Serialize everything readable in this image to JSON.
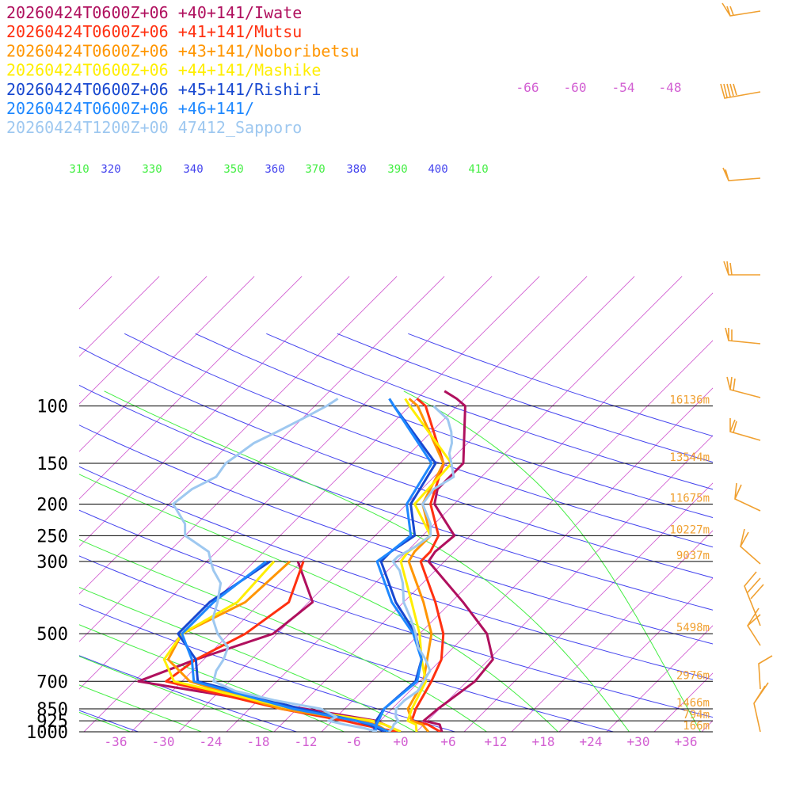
{
  "chart_data": {
    "type": "line",
    "title": "",
    "xlabel": "",
    "ylabel": "",
    "pressure_levels": [
      100,
      150,
      200,
      250,
      300,
      500,
      700,
      850,
      925,
      1000
    ],
    "pressure_labels": [
      "100",
      "150",
      "200",
      "250",
      "300",
      "500",
      "700",
      "850",
      "925",
      "1000"
    ],
    "height_labels": [
      "16136m",
      "13544m",
      "11675m",
      "10227m",
      "9037m",
      "5498m",
      "2976m",
      "1466m",
      "794m",
      "166m"
    ],
    "temp_ticks": [
      "-36",
      "-30",
      "-24",
      "-18",
      "-12",
      "-6",
      "+0",
      "+6",
      "+12",
      "+18",
      "+24",
      "+30",
      "+36"
    ],
    "theta_labels": [
      "310",
      "320",
      "330",
      "340",
      "350",
      "360",
      "370",
      "380",
      "390",
      "400",
      "410"
    ],
    "upper_temp_labels": [
      "-66",
      "-60",
      "-54",
      "-48"
    ],
    "grid": true,
    "legend_position": "top-left",
    "colors": {
      "isotherm": "#d25fd2",
      "dry_adiabat": "#4444ee",
      "moist_adiabat": "#44ee44",
      "isobar": "#000000",
      "height_label": "#f0a030",
      "wind_barb": "#f0a030"
    },
    "series": [
      {
        "name": "20260424T0600Z+06 +40+141/Iwate",
        "color": "#b0105e",
        "temperature": [
          [
            1000,
            5.2
          ],
          [
            950,
            4.0
          ],
          [
            925,
            1.5
          ],
          [
            850,
            1.8
          ],
          [
            700,
            3.0
          ],
          [
            600,
            2.5
          ],
          [
            500,
            -1.5
          ],
          [
            400,
            -8.5
          ],
          [
            300,
            -18.0
          ],
          [
            280,
            -18.4
          ],
          [
            250,
            -18.0
          ],
          [
            200,
            -24.5
          ],
          [
            180,
            -26.0
          ],
          [
            150,
            -26.0
          ],
          [
            100,
            -33.0
          ],
          [
            95,
            -35.0
          ],
          [
            90,
            -37.5
          ]
        ],
        "dewpoint": [
          [
            1000,
            0.0
          ],
          [
            950,
            -3.0
          ],
          [
            925,
            -4.5
          ],
          [
            850,
            -15.0
          ],
          [
            700,
            -39.5
          ],
          [
            600,
            -35.0
          ],
          [
            500,
            -28.5
          ],
          [
            400,
            -27.5
          ],
          [
            300,
            -34.5
          ]
        ]
      },
      {
        "name": "20260424T0600Z+06 +41+141/Mutsu",
        "color": "#ff3010",
        "temperature": [
          [
            1000,
            5.0
          ],
          [
            950,
            2.5
          ],
          [
            925,
            0.0
          ],
          [
            850,
            -1.0
          ],
          [
            700,
            -2.5
          ],
          [
            600,
            -4.0
          ],
          [
            500,
            -7.0
          ],
          [
            400,
            -12.0
          ],
          [
            300,
            -19.0
          ],
          [
            280,
            -19.0
          ],
          [
            250,
            -20.0
          ],
          [
            200,
            -25.0
          ],
          [
            150,
            -28.5
          ],
          [
            100,
            -38.0
          ],
          [
            95,
            -40.0
          ]
        ],
        "dewpoint": [
          [
            1000,
            -0.5
          ],
          [
            950,
            -6.0
          ],
          [
            925,
            -8.5
          ],
          [
            850,
            -18.0
          ],
          [
            700,
            -36.0
          ],
          [
            600,
            -35.0
          ],
          [
            500,
            -32.0
          ],
          [
            400,
            -30.5
          ],
          [
            300,
            -33.8
          ]
        ]
      },
      {
        "name": "20260424T0600Z+06 +43+141/Noboribetsu",
        "color": "#ff9500",
        "temperature": [
          [
            1000,
            3.5
          ],
          [
            950,
            1.8
          ],
          [
            925,
            0.0
          ],
          [
            850,
            -2.0
          ],
          [
            700,
            -3.5
          ],
          [
            600,
            -5.8
          ],
          [
            500,
            -8.5
          ],
          [
            400,
            -13.5
          ],
          [
            300,
            -20.5
          ],
          [
            280,
            -21.0
          ],
          [
            250,
            -21.0
          ],
          [
            200,
            -26.0
          ],
          [
            150,
            -28.5
          ],
          [
            100,
            -39.0
          ],
          [
            95,
            -41.0
          ]
        ],
        "dewpoint": [
          [
            1000,
            -1.5
          ],
          [
            950,
            -4.0
          ],
          [
            925,
            -6.5
          ],
          [
            850,
            -18.0
          ],
          [
            700,
            -33.0
          ],
          [
            600,
            -38.5
          ],
          [
            500,
            -40.0
          ],
          [
            400,
            -36.0
          ],
          [
            300,
            -35.5
          ]
        ]
      },
      {
        "name": "20260424T0600Z+06 +44+141/Mashike",
        "color": "#ffee00",
        "temperature": [
          [
            1000,
            2.0
          ],
          [
            950,
            1.0
          ],
          [
            925,
            -0.5
          ],
          [
            850,
            -1.5
          ],
          [
            700,
            -3.2
          ],
          [
            600,
            -6.5
          ],
          [
            500,
            -10.0
          ],
          [
            400,
            -15.0
          ],
          [
            300,
            -21.5
          ],
          [
            280,
            -21.8
          ],
          [
            250,
            -21.0
          ],
          [
            200,
            -27.0
          ],
          [
            150,
            -27.5
          ],
          [
            100,
            -40.0
          ],
          [
            95,
            -41.5
          ]
        ],
        "dewpoint": [
          [
            1000,
            0.0
          ],
          [
            950,
            -3.0
          ],
          [
            925,
            -5.0
          ],
          [
            850,
            -16.5
          ],
          [
            700,
            -35.0
          ],
          [
            600,
            -39.0
          ],
          [
            500,
            -40.0
          ],
          [
            400,
            -37.0
          ],
          [
            300,
            -37.5
          ]
        ]
      },
      {
        "name": "20260424T0600Z+06 +45+141/Rishiri",
        "color": "#1848d0",
        "temperature": [
          [
            1000,
            -3.5
          ],
          [
            950,
            -4.0
          ],
          [
            925,
            -4.5
          ],
          [
            850,
            -5.0
          ],
          [
            700,
            -4.5
          ],
          [
            600,
            -6.5
          ],
          [
            500,
            -10.5
          ],
          [
            400,
            -17.0
          ],
          [
            300,
            -24.0
          ],
          [
            280,
            -24.0
          ],
          [
            250,
            -23.0
          ],
          [
            200,
            -27.5
          ],
          [
            150,
            -29.5
          ],
          [
            100,
            -42.0
          ],
          [
            95,
            -43.5
          ]
        ],
        "dewpoint": [
          [
            1000,
            -2.0
          ],
          [
            950,
            -5.0
          ],
          [
            925,
            -7.0
          ],
          [
            850,
            -15.5
          ],
          [
            700,
            -32.0
          ],
          [
            600,
            -35.0
          ],
          [
            500,
            -40.5
          ],
          [
            400,
            -40.5
          ],
          [
            300,
            -38.0
          ]
        ]
      },
      {
        "name": "20260424T0600Z+06 +46+141/",
        "color": "#1e88ff",
        "temperature": [
          [
            1000,
            -3.2
          ],
          [
            950,
            -4.0
          ],
          [
            925,
            -4.2
          ],
          [
            850,
            -5.0
          ],
          [
            700,
            -4.3
          ],
          [
            600,
            -6.5
          ],
          [
            500,
            -10.8
          ],
          [
            400,
            -17.5
          ],
          [
            300,
            -24.5
          ],
          [
            280,
            -24.0
          ],
          [
            250,
            -23.5
          ],
          [
            200,
            -28.0
          ],
          [
            150,
            -30.0
          ],
          [
            100,
            -42.0
          ],
          [
            95,
            -43.5
          ]
        ],
        "dewpoint": [
          [
            1000,
            -1.5
          ],
          [
            950,
            -4.5
          ],
          [
            925,
            -7.0
          ],
          [
            850,
            -16.5
          ],
          [
            700,
            -32.5
          ],
          [
            600,
            -35.5
          ],
          [
            500,
            -40.0
          ],
          [
            400,
            -40.0
          ],
          [
            300,
            -38.5
          ]
        ]
      },
      {
        "name": "20260424T1200Z+00 47412_Sapporo",
        "color": "#9ec8f0",
        "temperature": [
          [
            1000,
            -1.5
          ],
          [
            975,
            -1.5
          ],
          [
            950,
            -1.8
          ],
          [
            925,
            -1.7
          ],
          [
            900,
            -2.5
          ],
          [
            850,
            -3.5
          ],
          [
            800,
            -3.5
          ],
          [
            750,
            -3.0
          ],
          [
            700,
            -3.5
          ],
          [
            650,
            -4.0
          ],
          [
            600,
            -6.0
          ],
          [
            550,
            -8.5
          ],
          [
            500,
            -10.5
          ],
          [
            450,
            -13.0
          ],
          [
            400,
            -16.0
          ],
          [
            350,
            -18.5
          ],
          [
            320,
            -20.5
          ],
          [
            300,
            -22.5
          ],
          [
            290,
            -22.5
          ],
          [
            270,
            -21.5
          ],
          [
            250,
            -21.0
          ],
          [
            230,
            -22.5
          ],
          [
            200,
            -26.0
          ],
          [
            180,
            -26.5
          ],
          [
            165,
            -25.5
          ],
          [
            150,
            -27.5
          ],
          [
            140,
            -29.0
          ],
          [
            130,
            -30.0
          ],
          [
            120,
            -31.5
          ],
          [
            110,
            -33.5
          ],
          [
            100,
            -37.0
          ]
        ],
        "dewpoint": [
          [
            1000,
            -3.0
          ],
          [
            975,
            -5.0
          ],
          [
            950,
            -8.0
          ],
          [
            925,
            -10.5
          ],
          [
            900,
            -10.0
          ],
          [
            850,
            -13.0
          ],
          [
            800,
            -20.0
          ],
          [
            750,
            -26.0
          ],
          [
            700,
            -30.0
          ],
          [
            650,
            -31.0
          ],
          [
            600,
            -31.5
          ],
          [
            550,
            -32.5
          ],
          [
            500,
            -35.5
          ],
          [
            450,
            -38.0
          ],
          [
            400,
            -39.5
          ],
          [
            350,
            -41.5
          ],
          [
            320,
            -44.0
          ],
          [
            300,
            -45.5
          ],
          [
            280,
            -47.0
          ],
          [
            250,
            -52.0
          ],
          [
            230,
            -53.5
          ],
          [
            200,
            -57.5
          ],
          [
            180,
            -57.0
          ],
          [
            165,
            -55.5
          ],
          [
            150,
            -56.0
          ],
          [
            140,
            -55.5
          ],
          [
            130,
            -55.0
          ],
          [
            120,
            -53.5
          ],
          [
            110,
            -52.0
          ],
          [
            100,
            -50.5
          ],
          [
            95,
            -50.0
          ]
        ]
      }
    ]
  }
}
